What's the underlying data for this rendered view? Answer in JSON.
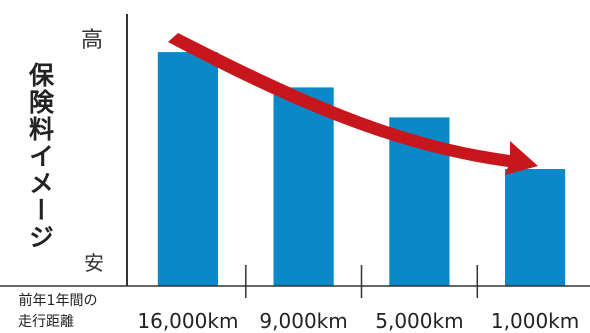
{
  "chart_data": {
    "type": "bar",
    "categories": [
      "16,000km",
      "9,000km",
      "5,000km",
      "1,000km"
    ],
    "values": [
      86,
      73,
      62,
      43
    ],
    "ylabel": "保険料イメージ",
    "y_top_label": "高",
    "y_bottom_label": "安",
    "category_header": [
      "前年1年間の",
      "走行距離"
    ],
    "ylim": [
      0,
      100
    ],
    "grid": false,
    "bar_color": "#0A88C7",
    "arrow_color": "#C8161D",
    "axis_color": "#333333",
    "trend_arrow": "decreasing"
  }
}
